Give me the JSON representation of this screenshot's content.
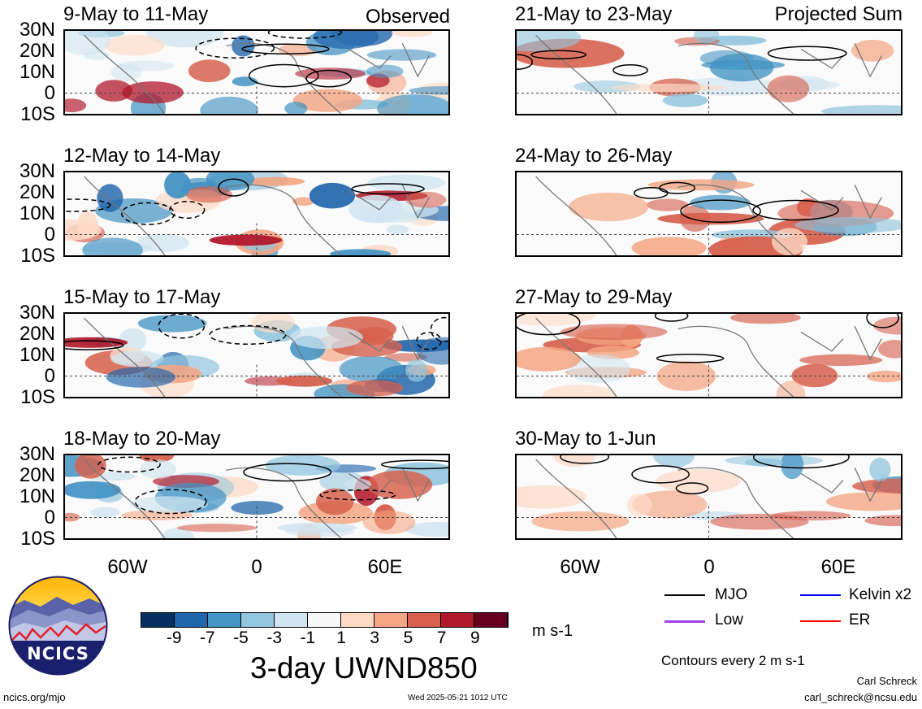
{
  "panels_left": [
    {
      "title": "9-May to 11-May",
      "corner": "Observed"
    },
    {
      "title": "12-May to 14-May",
      "corner": ""
    },
    {
      "title": "15-May to 17-May",
      "corner": ""
    },
    {
      "title": "18-May to 20-May",
      "corner": ""
    }
  ],
  "panels_right": [
    {
      "title": "21-May to 23-May",
      "corner": "Projected Sum"
    },
    {
      "title": "24-May to 26-May",
      "corner": ""
    },
    {
      "title": "27-May to 29-May",
      "corner": ""
    },
    {
      "title": "30-May to 1-Jun",
      "corner": ""
    }
  ],
  "lat_labels": [
    "30N",
    "20N",
    "10N",
    "0",
    "10S"
  ],
  "lon_labels": [
    "60W",
    "0",
    "60E"
  ],
  "colorbar": {
    "colors": [
      "#053061",
      "#2166ac",
      "#4393c3",
      "#92c5de",
      "#d1e5f0",
      "#f7f7f7",
      "#fddbc7",
      "#f4a582",
      "#d6604d",
      "#b2182b",
      "#67001f"
    ],
    "ticks": [
      "-9",
      "-7",
      "-5",
      "-3",
      "-1",
      "1",
      "3",
      "5",
      "7",
      "9"
    ],
    "unit": "m s-1"
  },
  "main_title": "3-day UWND850",
  "legend": {
    "items": [
      {
        "label": "MJO",
        "color": "#000000"
      },
      {
        "label": "Kelvin x2",
        "color": "#0000ff"
      },
      {
        "label": "Low",
        "color": "#a040e0"
      },
      {
        "label": "ER",
        "color": "#ff0000"
      }
    ],
    "contour_note": "Contours every 2 m s-1"
  },
  "logo_text": "NCICS",
  "footer": {
    "url": "ncics.org/mjo",
    "timestamp": "Wed 2025-05-21 1012 UTC",
    "author": "Carl Schreck",
    "email": "carl_schreck@ncsu.edu"
  }
}
